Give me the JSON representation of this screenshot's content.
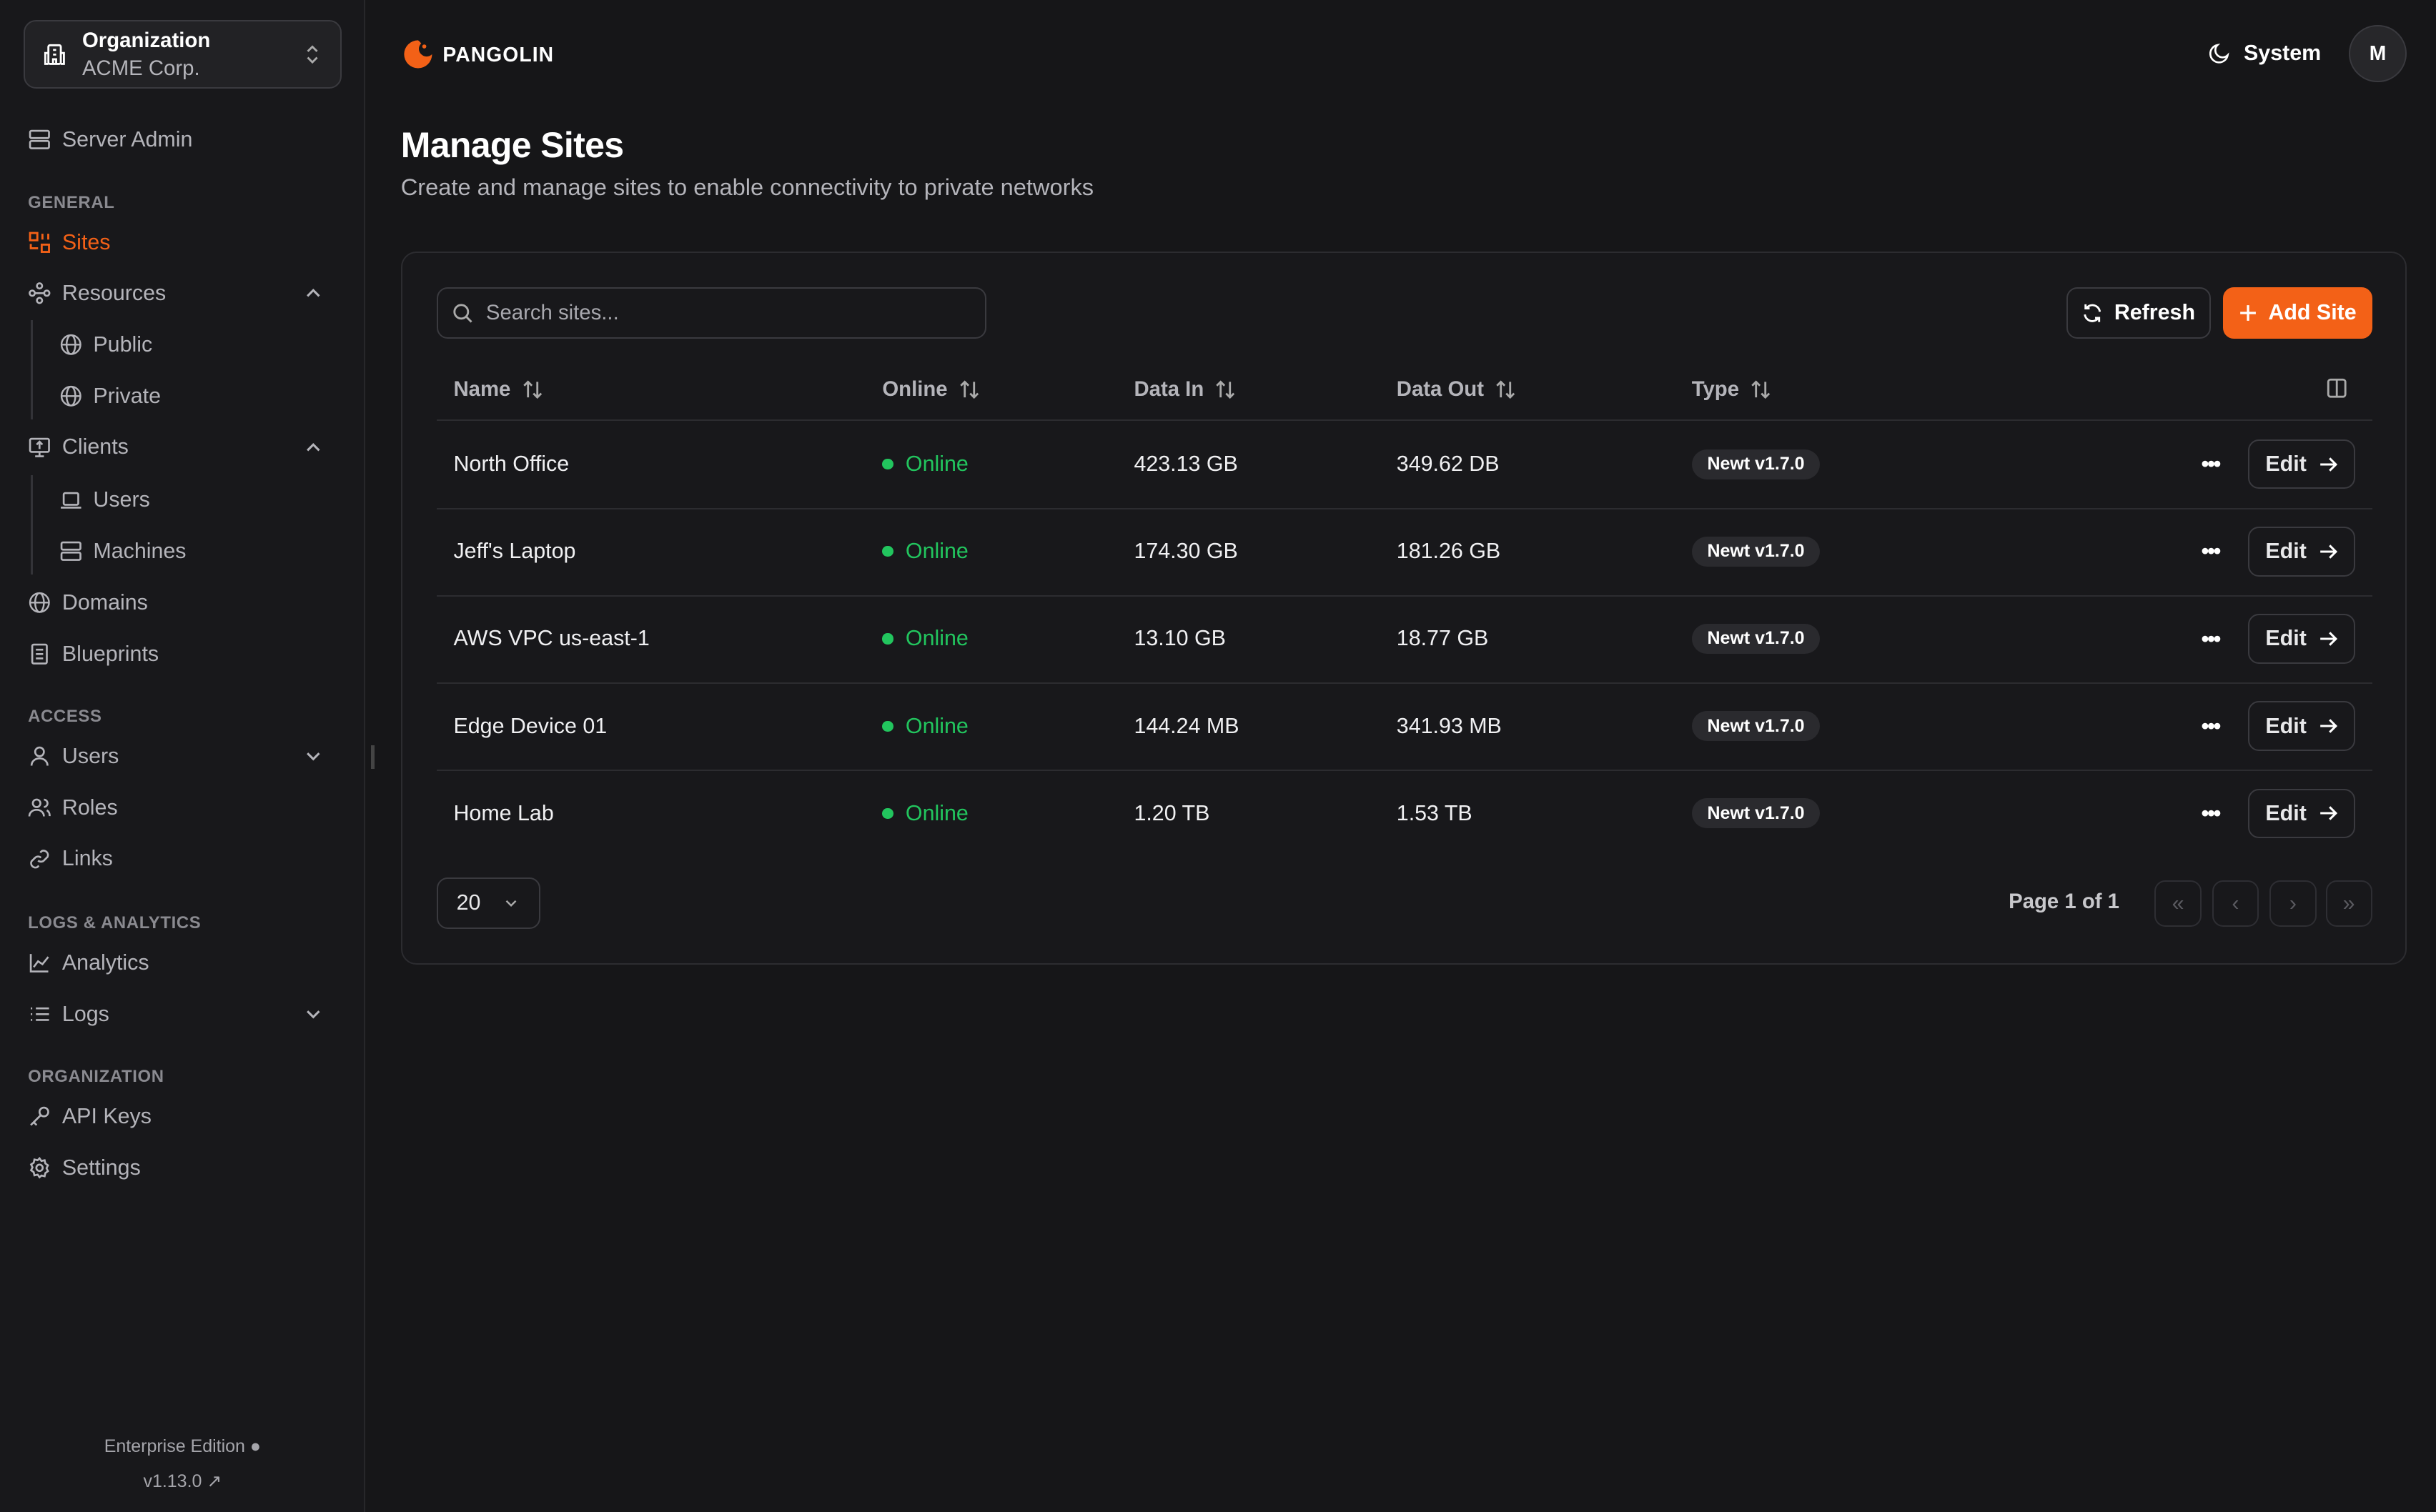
{
  "colors": {
    "accent": "#f36117",
    "online": "#22c55e",
    "background": "#161618"
  },
  "org": {
    "label": "Organization",
    "name": "ACME Corp."
  },
  "sidebar": {
    "server_admin": "Server Admin",
    "sections": {
      "general": "GENERAL",
      "access": "ACCESS",
      "logs": "LOGS & ANALYTICS",
      "organization": "ORGANIZATION"
    },
    "items": {
      "sites": "Sites",
      "resources": "Resources",
      "public": "Public",
      "private": "Private",
      "clients": "Clients",
      "users_sub": "Users",
      "machines": "Machines",
      "domains": "Domains",
      "blueprints": "Blueprints",
      "users": "Users",
      "roles": "Roles",
      "links": "Links",
      "analytics": "Analytics",
      "logs": "Logs",
      "api_keys": "API Keys",
      "settings": "Settings"
    },
    "footer": {
      "edition": "Enterprise Edition",
      "version": "v1.13.0"
    }
  },
  "header": {
    "brand": "PANGOLIN",
    "theme": "System",
    "avatar": "M"
  },
  "page": {
    "title": "Manage Sites",
    "subtitle": "Create and manage sites to enable connectivity to private networks"
  },
  "toolbar": {
    "search_placeholder": "Search sites...",
    "refresh": "Refresh",
    "add": "Add Site"
  },
  "table": {
    "columns": [
      "Name",
      "Online",
      "Data In",
      "Data Out",
      "Type"
    ],
    "rows": [
      {
        "name": "North Office",
        "online": "Online",
        "data_in": "423.13 GB",
        "data_out": "349.62 DB",
        "type": "Newt v1.7.0",
        "edit": "Edit"
      },
      {
        "name": "Jeff's Laptop",
        "online": "Online",
        "data_in": "174.30 GB",
        "data_out": "181.26 GB",
        "type": "Newt v1.7.0",
        "edit": "Edit"
      },
      {
        "name": "AWS VPC us-east-1",
        "online": "Online",
        "data_in": "13.10 GB",
        "data_out": "18.77 GB",
        "type": "Newt v1.7.0",
        "edit": "Edit"
      },
      {
        "name": "Edge Device 01",
        "online": "Online",
        "data_in": "144.24 MB",
        "data_out": "341.93 MB",
        "type": "Newt v1.7.0",
        "edit": "Edit"
      },
      {
        "name": "Home Lab",
        "online": "Online",
        "data_in": "1.20 TB",
        "data_out": "1.53 TB",
        "type": "Newt v1.7.0",
        "edit": "Edit"
      }
    ]
  },
  "pagination": {
    "page_size": "20",
    "info": "Page 1 of 1"
  }
}
